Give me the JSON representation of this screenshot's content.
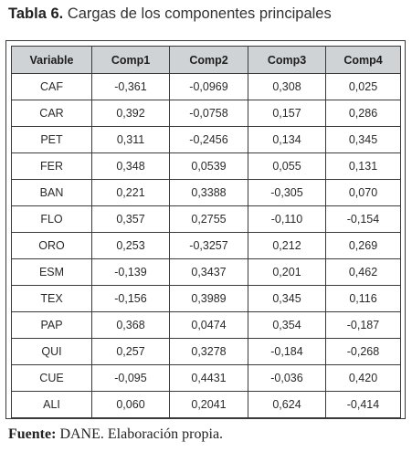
{
  "caption": {
    "lead": "Tabla 6.",
    "text": "Cargas de los componentes principales"
  },
  "table": {
    "headers": [
      "Variable",
      "Comp1",
      "Comp2",
      "Comp3",
      "Comp4"
    ],
    "rows": [
      [
        "CAF",
        "-0,361",
        "-0,0969",
        "0,308",
        "0,025"
      ],
      [
        "CAR",
        "0,392",
        "-0,0758",
        "0,157",
        "0,286"
      ],
      [
        "PET",
        "0,311",
        "-0,2456",
        "0,134",
        "0,345"
      ],
      [
        "FER",
        "0,348",
        "0,0539",
        "0,055",
        "0,131"
      ],
      [
        "BAN",
        "0,221",
        "0,3388",
        "-0,305",
        "0,070"
      ],
      [
        "FLO",
        "0,357",
        "0,2755",
        "-0,110",
        "-0,154"
      ],
      [
        "ORO",
        "0,253",
        "-0,3257",
        "0,212",
        "0,269"
      ],
      [
        "ESM",
        "-0,139",
        "0,3437",
        "0,201",
        "0,462"
      ],
      [
        "TEX",
        "-0,156",
        "0,3989",
        "0,345",
        "0,116"
      ],
      [
        "PAP",
        "0,368",
        "0,0474",
        "0,354",
        "-0,187"
      ],
      [
        "QUI",
        "0,257",
        "0,3278",
        "-0,184",
        "-0,268"
      ],
      [
        "CUE",
        "-0,095",
        "0,4431",
        "-0,036",
        "0,420"
      ],
      [
        "ALI",
        "0,060",
        "0,2041",
        "0,624",
        "-0,414"
      ]
    ]
  },
  "source": {
    "lead": "Fuente:",
    "text": "DANE. Elaboración propia."
  }
}
